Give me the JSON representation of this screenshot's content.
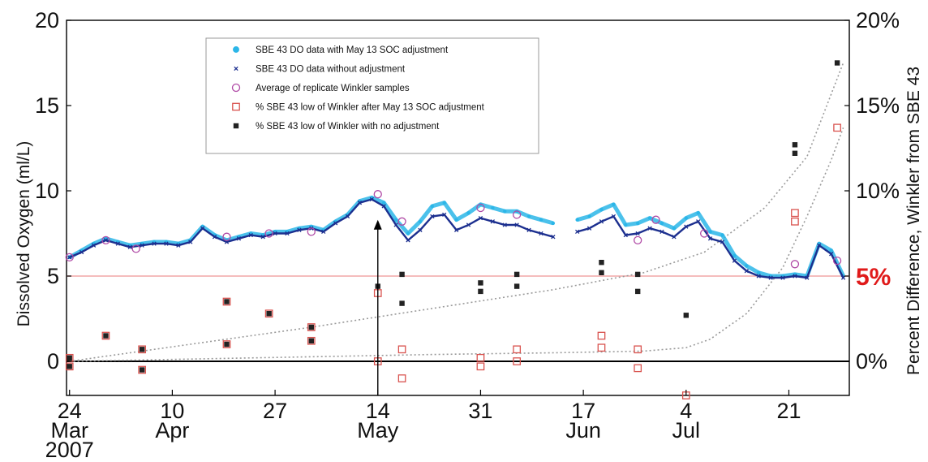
{
  "chart_data": {
    "type": "scatter",
    "title": "",
    "ylabel": "Dissolved Oxygen (ml/L)",
    "y2label": "Percent Difference, Winkler from SBE 43",
    "ylim": [
      -2,
      20
    ],
    "y2lim": [
      -2,
      20
    ],
    "xlim": [
      -0.5,
      129
    ],
    "yticks": [
      {
        "v": 0,
        "label": "0"
      },
      {
        "v": 5,
        "label": "5"
      },
      {
        "v": 10,
        "label": "10"
      },
      {
        "v": 15,
        "label": "15"
      },
      {
        "v": 20,
        "label": "20"
      }
    ],
    "y2ticks": [
      {
        "v": 0,
        "label": "0%"
      },
      {
        "v": 10,
        "label": "10%"
      },
      {
        "v": 15,
        "label": "15%"
      },
      {
        "v": 20,
        "label": "20%"
      }
    ],
    "y2_highlight": {
      "v": 5,
      "label": "5%",
      "color": "#e01a1a"
    },
    "xticks": [
      {
        "x": 0,
        "day": "24",
        "month": "Mar",
        "year": "2007"
      },
      {
        "x": 17,
        "day": "10",
        "month": "Apr",
        "year": ""
      },
      {
        "x": 34,
        "day": "27",
        "month": "",
        "year": ""
      },
      {
        "x": 51,
        "day": "14",
        "month": "May",
        "year": ""
      },
      {
        "x": 68,
        "day": "31",
        "month": "",
        "year": ""
      },
      {
        "x": 85,
        "day": "17",
        "month": "Jun",
        "year": ""
      },
      {
        "x": 102,
        "day": "4",
        "month": "Jul",
        "year": ""
      },
      {
        "x": 119,
        "day": "21",
        "month": "",
        "year": ""
      }
    ],
    "reference_lines": [
      {
        "y": 5,
        "color": "#f2a7a7"
      },
      {
        "y": 0,
        "color": "#000000"
      }
    ],
    "annotation_arrow": {
      "x": 51,
      "y_from": -2,
      "y_to": 8.3
    },
    "legend_position": "top-center",
    "series": [
      {
        "name": "SBE 43 DO data with May 13 SOC adjustment",
        "marker": "dot",
        "color": "#2bb6e8",
        "x": [
          0,
          2,
          4,
          6,
          8,
          10,
          12,
          14,
          16,
          18,
          20,
          22,
          24,
          26,
          28,
          30,
          32,
          34,
          36,
          38,
          40,
          42,
          44,
          46,
          48,
          50,
          52,
          54,
          56,
          58,
          60,
          62,
          64,
          66,
          68,
          70,
          72,
          74,
          76,
          78,
          80,
          82,
          84,
          86,
          88,
          90,
          92,
          94,
          96,
          98,
          100,
          102,
          104,
          106,
          108,
          110,
          112,
          114,
          116,
          118,
          120,
          122,
          124,
          126,
          128
        ],
        "y": [
          6.1,
          6.5,
          6.9,
          7.2,
          7.0,
          6.8,
          6.9,
          7.0,
          7.0,
          6.9,
          7.1,
          7.9,
          7.4,
          7.1,
          7.3,
          7.5,
          7.4,
          7.6,
          7.6,
          7.8,
          7.9,
          7.7,
          8.2,
          8.6,
          9.4,
          9.6,
          9.3,
          8.3,
          7.5,
          8.2,
          9.1,
          9.3,
          8.3,
          8.7,
          9.2,
          9.0,
          8.8,
          8.8,
          8.5,
          8.3,
          8.1,
          null,
          8.3,
          8.5,
          8.9,
          9.2,
          8.0,
          8.1,
          8.4,
          8.1,
          7.8,
          8.4,
          8.7,
          7.6,
          7.4,
          6.2,
          5.6,
          5.2,
          5.0,
          5.0,
          5.1,
          5.0,
          6.9,
          6.5,
          5.0
        ]
      },
      {
        "name": "SBE 43 DO data without adjustment",
        "marker": "x",
        "color": "#1c2f8f",
        "x": [
          0,
          2,
          4,
          6,
          8,
          10,
          12,
          14,
          16,
          18,
          20,
          22,
          24,
          26,
          28,
          30,
          32,
          34,
          36,
          38,
          40,
          42,
          44,
          46,
          48,
          50,
          52,
          54,
          56,
          58,
          60,
          62,
          64,
          66,
          68,
          70,
          72,
          74,
          76,
          78,
          80,
          82,
          84,
          86,
          88,
          90,
          92,
          94,
          96,
          98,
          100,
          102,
          104,
          106,
          108,
          110,
          112,
          114,
          116,
          118,
          120,
          122,
          124,
          126,
          128
        ],
        "y": [
          6.1,
          6.4,
          6.8,
          7.1,
          6.9,
          6.7,
          6.8,
          6.9,
          6.9,
          6.8,
          7.0,
          7.8,
          7.3,
          7.0,
          7.2,
          7.4,
          7.3,
          7.5,
          7.5,
          7.7,
          7.8,
          7.6,
          8.1,
          8.5,
          9.3,
          9.5,
          9.1,
          8.0,
          7.1,
          7.7,
          8.5,
          8.6,
          7.7,
          8.0,
          8.4,
          8.2,
          8.0,
          8.0,
          7.7,
          7.5,
          7.3,
          null,
          7.6,
          7.8,
          8.2,
          8.5,
          7.4,
          7.5,
          7.8,
          7.6,
          7.3,
          7.9,
          8.2,
          7.2,
          7.0,
          5.9,
          5.3,
          5.0,
          4.9,
          4.9,
          5.0,
          4.9,
          6.8,
          6.3,
          4.9
        ]
      },
      {
        "name": "Average of replicate Winkler samples",
        "marker": "circle",
        "color": "#b04aa6",
        "x": [
          0,
          6,
          11,
          26,
          33,
          40,
          51,
          55,
          68,
          74,
          94,
          97,
          105,
          120,
          127
        ],
        "y": [
          6.1,
          7.1,
          6.6,
          7.3,
          7.5,
          7.6,
          9.8,
          8.2,
          9.0,
          8.6,
          7.1,
          8.3,
          7.5,
          5.7,
          5.9
        ]
      },
      {
        "name": "% SBE 43 low of Winkler after May 13 SOC adjustment",
        "marker": "square",
        "color": "#d9534f",
        "x": [
          0,
          0,
          6,
          12,
          12,
          26,
          26,
          33,
          40,
          40,
          51,
          51,
          55,
          55,
          68,
          68,
          74,
          74,
          88,
          88,
          94,
          94,
          102,
          120,
          120,
          127
        ],
        "y": [
          0.2,
          -0.3,
          1.5,
          0.7,
          -0.5,
          3.5,
          1.0,
          2.8,
          2.0,
          1.2,
          4.0,
          0.0,
          0.7,
          -1.0,
          0.2,
          -0.3,
          0.7,
          0.0,
          1.5,
          0.8,
          0.7,
          -0.4,
          -2.0,
          8.7,
          8.2,
          13.7
        ]
      },
      {
        "name": "% SBE 43 low of Winkler with no adjustment",
        "marker": "square-filled",
        "color": "#222222",
        "x": [
          0,
          0,
          6,
          12,
          12,
          26,
          26,
          33,
          40,
          40,
          51,
          55,
          55,
          68,
          68,
          74,
          74,
          88,
          88,
          94,
          94,
          102,
          120,
          120,
          127
        ],
        "y": [
          0.2,
          -0.3,
          1.5,
          0.7,
          -0.5,
          3.5,
          1.0,
          2.8,
          2.0,
          1.2,
          4.4,
          5.1,
          3.4,
          4.6,
          4.1,
          5.1,
          4.4,
          5.8,
          5.2,
          5.1,
          4.1,
          2.7,
          12.7,
          12.2,
          17.5
        ]
      }
    ],
    "trend_lines": [
      {
        "color": "#9a9a9a",
        "x": [
          0,
          20,
          40,
          60,
          80,
          95,
          105,
          115,
          122,
          128
        ],
        "y": [
          0.0,
          1.0,
          2.0,
          3.1,
          4.2,
          5.2,
          6.4,
          9.0,
          12.0,
          17.5
        ]
      },
      {
        "color": "#9a9a9a",
        "x": [
          0,
          30,
          60,
          80,
          95,
          102,
          106,
          112,
          118,
          122,
          126,
          128
        ],
        "y": [
          0.0,
          0.2,
          0.4,
          0.5,
          0.6,
          0.8,
          1.3,
          2.8,
          5.5,
          8.5,
          11.8,
          13.7
        ]
      }
    ]
  }
}
